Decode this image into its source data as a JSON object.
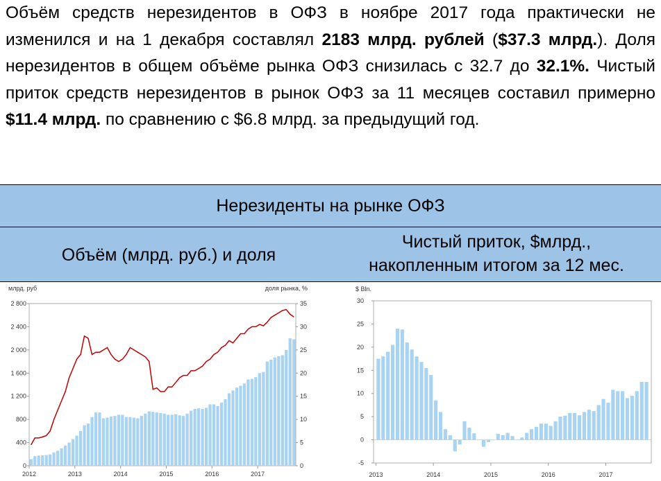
{
  "paragraph": {
    "p1": "Объём средств нерезидентов в ОФЗ в ноябре 2017 года практически не изменился и на 1 декабря составлял ",
    "b1": "2183 млрд. рублей",
    "p2": " (",
    "b2": "$37.3 млрд.",
    "p3": "). Доля нерезидентов в общем объёме рынка ОФЗ снизилась с 32.7 до ",
    "b3": "32.1%.",
    "p4": " Чистый приток средств нерезидентов в рынок ОФЗ за 11 месяцев составил примерно ",
    "b4": "$11.4 млрд.",
    "p5": " по сравнению с $6.8 млрд. за предыдущий год."
  },
  "header": {
    "title": "Нерезиденты на рынке ОФЗ",
    "left_subtitle": "Объём (млрд. руб.) и доля",
    "right_subtitle_line1": "Чистый приток, $млрд.,",
    "right_subtitle_line2": "накопленным итогом за 12 мес."
  },
  "colors": {
    "bar": "#a9d3f2",
    "line": "#c00000",
    "header_bg": "#9dc3e6"
  },
  "chart_data": [
    {
      "type": "bar",
      "ylabel": "млрд. руб",
      "y2label": "доля рынка, %",
      "ylim": [
        0,
        2800
      ],
      "y2lim": [
        0,
        35
      ],
      "yticks": [
        "2 800",
        "2 400",
        "2 000",
        "1 600",
        "1 200",
        "800",
        "400",
        "0"
      ],
      "y2ticks": [
        "35",
        "30",
        "25",
        "20",
        "15",
        "10",
        "5",
        "0"
      ],
      "xticks": [
        "2012",
        "2013",
        "2014",
        "2015",
        "2016",
        "2017"
      ],
      "x_start": "2012-01",
      "series": [
        {
          "values": [
            115,
            165,
            175,
            180,
            185,
            195,
            230,
            260,
            300,
            350,
            400,
            460,
            520,
            600,
            700,
            730,
            840,
            920,
            920,
            820,
            830,
            850,
            860,
            880,
            880,
            840,
            840,
            830,
            820,
            860,
            900,
            940,
            930,
            920,
            910,
            900,
            880,
            880,
            890,
            870,
            860,
            900,
            950,
            980,
            990,
            980,
            1000,
            1060,
            1060,
            1030,
            1090,
            1150,
            1250,
            1300,
            1350,
            1380,
            1420,
            1490,
            1500,
            1530,
            1600,
            1620,
            1800,
            1830,
            1870,
            1890,
            1910,
            2000,
            2200,
            2183
          ]
        },
        {
          "values": [
            4.5,
            6,
            6,
            6.2,
            6.5,
            7.5,
            10,
            12,
            14,
            16,
            19,
            21,
            23,
            24,
            28,
            27.5,
            24,
            24.5,
            24.5,
            25,
            25.5,
            24,
            23,
            22.5,
            23,
            24,
            25.5,
            25,
            24.5,
            24,
            23.5,
            22.5,
            16.5,
            16.8,
            16,
            16,
            17,
            17,
            18,
            19,
            19.5,
            19.5,
            20.5,
            20.5,
            21,
            21.5,
            22.5,
            23,
            24,
            24.5,
            25.5,
            26,
            27,
            26.5,
            27.5,
            28.5,
            28.5,
            29.5,
            30,
            30,
            30.5,
            30.2,
            31,
            32,
            32.5,
            33,
            33.5,
            33.7,
            32.7,
            32.1
          ]
        }
      ]
    },
    {
      "type": "bar",
      "ylabel": "$ Bln.",
      "ylim": [
        -5,
        30
      ],
      "yticks": [
        "30",
        "25",
        "20",
        "15",
        "10",
        "5",
        "0",
        "-5"
      ],
      "xticks": [
        "2013",
        "2014",
        "2015",
        "2016",
        "2017"
      ],
      "x_start": "2013-01",
      "values": [
        17.5,
        18,
        19,
        20.5,
        24,
        23.8,
        21,
        19.5,
        18,
        16.8,
        15.5,
        14,
        8.5,
        6,
        2.3,
        1,
        -2.5,
        -1,
        4,
        2.6,
        1.4,
        0,
        -1.5,
        -0.5,
        0,
        1.3,
        1,
        1.5,
        0.8,
        0,
        0.5,
        1.5,
        2.3,
        2.8,
        3.5,
        3.5,
        3,
        4,
        5,
        5.2,
        5.8,
        5.8,
        5.3,
        6,
        6.5,
        6.2,
        7.5,
        8.8,
        8,
        10.8,
        10.5,
        10.5,
        9,
        9.5,
        10.5,
        12.5,
        12.5
      ]
    }
  ]
}
